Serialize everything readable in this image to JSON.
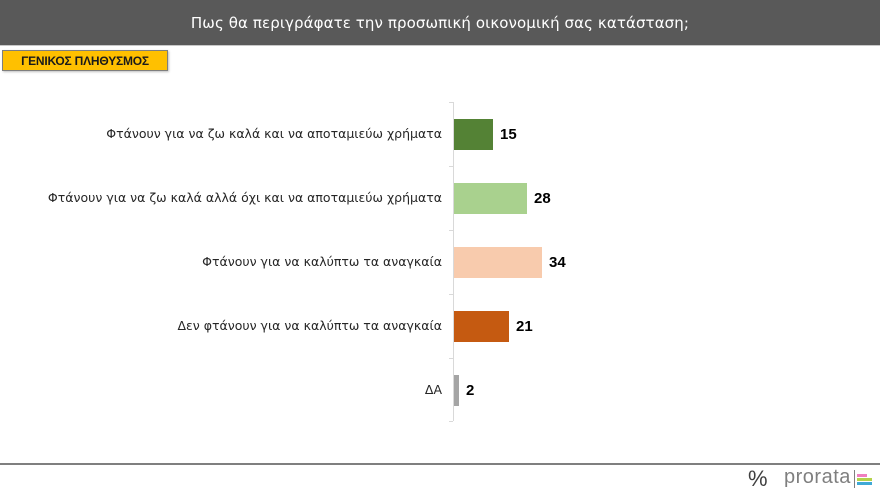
{
  "header": {
    "title": "Πως θα περιγράφατε την προσωπική οικονομική σας κατάσταση;"
  },
  "badge": {
    "label": "ΓΕΝΙΚΟΣ ΠΛΗΘΥΣΜΟΣ"
  },
  "footer": {
    "percent_symbol": "%",
    "brand": "prorata"
  },
  "colors": {
    "header_bg": "#595959",
    "badge_bg": "#ffc000",
    "logo_bars": [
      "#f07fbf",
      "#b4d24a",
      "#3fa9d6"
    ]
  },
  "chart_data": {
    "type": "bar",
    "orientation": "horizontal",
    "title": "Πως θα περιγράφατε την προσωπική οικονομική σας κατάσταση;",
    "subtitle": "ΓΕΝΙΚΟΣ ΠΛΗΘΥΣΜΟΣ",
    "xlabel": "",
    "ylabel": "",
    "unit": "%",
    "grid": false,
    "legend": null,
    "categories": [
      "Φτάνουν για να ζω καλά και να αποταμιεύω χρήματα",
      "Φτάνουν για να ζω καλά αλλά όχι και να αποταμιεύω χρήματα",
      "Φτάνουν για να καλύπτω τα αναγκαία",
      "Δεν φτάνουν για να καλύπτω τα αναγκαία",
      "ΔΑ"
    ],
    "values": [
      15,
      28,
      34,
      21,
      2
    ],
    "labels": [
      "15",
      "28",
      "34",
      "21",
      "2"
    ],
    "bar_colors": [
      "#548235",
      "#a9d18e",
      "#f8cbad",
      "#c55a11",
      "#a5a5a5"
    ]
  }
}
